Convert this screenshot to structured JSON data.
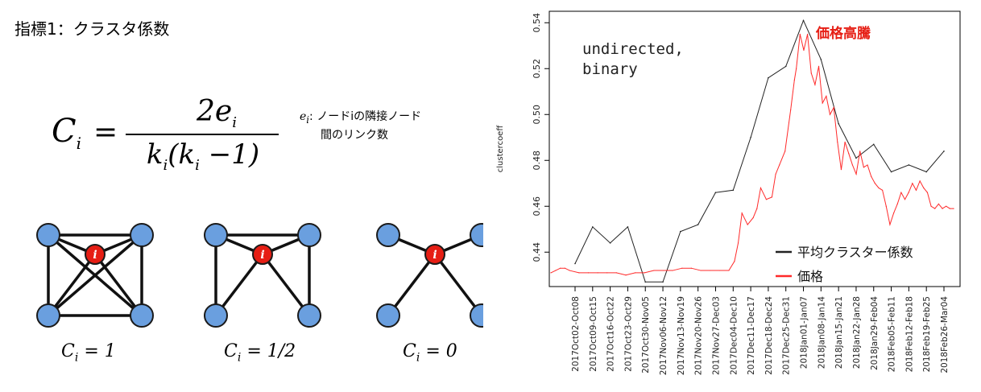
{
  "heading": "指標1：クラスタ係数",
  "formula": {
    "lhs": "C",
    "lhs_sub": "i",
    "eq": "=",
    "numerator": "2e",
    "numerator_sub": "i",
    "denominator": "k(k −1)",
    "denominator_pre": "k",
    "denominator_sub1": "i",
    "denominator_mid": "(k",
    "denominator_sub2": "i",
    "denominator_post": " −1)"
  },
  "note": {
    "var": "e",
    "var_sub": "i",
    "line1": ": ノードiの隣接ノード",
    "line2": "間のリンク数"
  },
  "graph_labels": [
    "C_i = 1",
    "C_i = 1/2",
    "C_i = 0"
  ],
  "node_label": "i",
  "colors": {
    "node_blue": "#6a9fdf",
    "node_red": "#e61e14",
    "edge": "#111111",
    "price_line": "#ff2a2a",
    "cluster_line": "#222222"
  },
  "chart_data": {
    "type": "line",
    "ylabel": "clustercoeff",
    "ylim": [
      0.425,
      0.545
    ],
    "yticks": [
      "0.44",
      "0.46",
      "0.48",
      "0.50",
      "0.52",
      "0.54"
    ],
    "annotation_text": "undirected,\nbinary",
    "callout": "価格高騰",
    "legend": [
      "平均クラスター係数",
      "価格"
    ],
    "categories": [
      "2017Oct02-Oct08",
      "2017Oct09-Oct15",
      "2017Oct16-Oct22",
      "2017Oct23-Oct29",
      "2017Oct30-Nov05",
      "2017Nov06-Nov12",
      "2017Nov13-Nov19",
      "2017Nov20-Nov26",
      "2017Nov27-Dec03",
      "2017Dec04-Dec10",
      "2017Dec11-Dec17",
      "2017Dec18-Dec24",
      "2017Dec25-Dec31",
      "2018Jan01-Jan07",
      "2018Jan08-Jan14",
      "2018Jan15-Jan21",
      "2018Jan22-Jan28",
      "2018Jan29-Feb04",
      "2018Feb05-Feb11",
      "2018Feb12-Feb18",
      "2018Feb19-Feb25",
      "2018Feb26-Mar04"
    ],
    "series": [
      {
        "name": "平均クラスター係数",
        "values": [
          0.435,
          0.451,
          0.444,
          0.451,
          0.427,
          0.427,
          0.449,
          0.452,
          0.466,
          0.467,
          0.49,
          0.516,
          0.521,
          0.541,
          0.524,
          0.496,
          0.481,
          0.487,
          0.475,
          0.478,
          0.475,
          0.484
        ]
      },
      {
        "name": "価格",
        "x": [
          0,
          0.25,
          0.5,
          0.75,
          1,
          1.5,
          2,
          2.5,
          3,
          3.5,
          4,
          4.5,
          5,
          5.5,
          6,
          6.5,
          7,
          7.5,
          8,
          8.5,
          9,
          9.5,
          9.8,
          10,
          10.2,
          10.5,
          10.8,
          11,
          11.2,
          11.5,
          11.8,
          12,
          12.2,
          12.5,
          12.8,
          13,
          13.1,
          13.3,
          13.5,
          13.7,
          13.9,
          14.1,
          14.3,
          14.5,
          14.7,
          14.9,
          15.1,
          15.3,
          15.5,
          15.7,
          15.9,
          16.1,
          16.3,
          16.5,
          16.7,
          16.9,
          17.1,
          17.3,
          17.5,
          17.7,
          17.9,
          18.1,
          18.3,
          18.5,
          18.7,
          18.9,
          19.1,
          19.3,
          19.5,
          19.7,
          19.9,
          20.1,
          20.3,
          20.5,
          20.7,
          20.9,
          21.1,
          21.3,
          21.5
        ],
        "values": [
          0.431,
          0.432,
          0.433,
          0.433,
          0.432,
          0.431,
          0.431,
          0.431,
          0.431,
          0.431,
          0.43,
          0.431,
          0.431,
          0.432,
          0.432,
          0.432,
          0.433,
          0.433,
          0.432,
          0.432,
          0.432,
          0.432,
          0.436,
          0.444,
          0.457,
          0.452,
          0.455,
          0.459,
          0.468,
          0.463,
          0.464,
          0.474,
          0.478,
          0.484,
          0.502,
          0.515,
          0.52,
          0.535,
          0.528,
          0.535,
          0.518,
          0.513,
          0.521,
          0.505,
          0.508,
          0.5,
          0.503,
          0.488,
          0.476,
          0.488,
          0.483,
          0.478,
          0.474,
          0.484,
          0.477,
          0.478,
          0.473,
          0.47,
          0.468,
          0.467,
          0.46,
          0.452,
          0.457,
          0.461,
          0.466,
          0.463,
          0.466,
          0.47,
          0.467,
          0.471,
          0.468,
          0.466,
          0.46,
          0.459,
          0.461,
          0.459,
          0.46,
          0.459,
          0.459
        ]
      }
    ]
  }
}
